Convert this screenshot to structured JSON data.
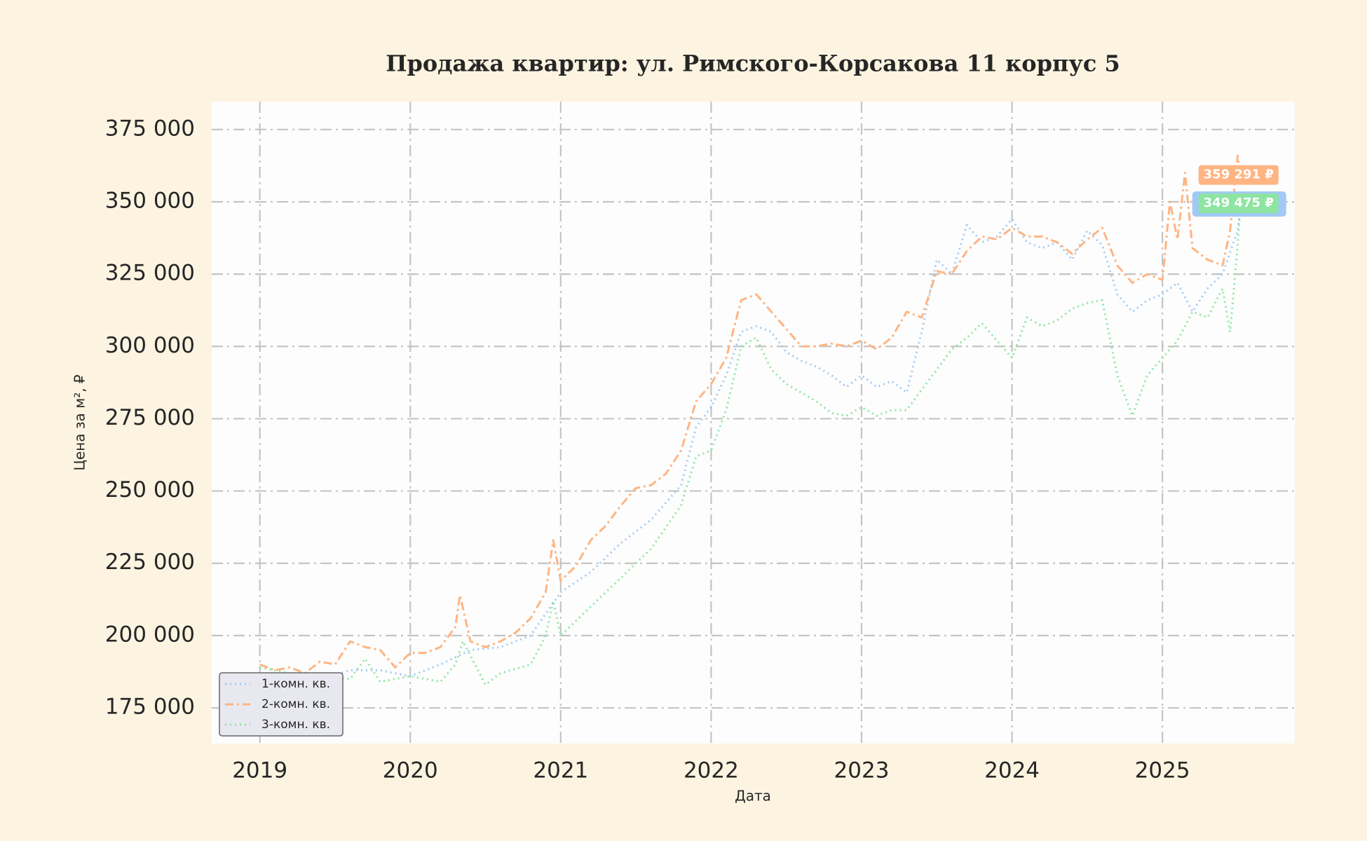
{
  "chart_data": {
    "type": "line",
    "title": "Продажа квартир: ул. Римского-Корсакова 11 корпус 5",
    "xlabel": "Дата",
    "ylabel": "Цена за м², ₽",
    "xlim": [
      2018.68,
      2025.88
    ],
    "xticks": [
      2019,
      2020,
      2021,
      2022,
      2023,
      2024,
      2025
    ],
    "ylim": [
      162650,
      384650
    ],
    "yticks": [
      {
        "value": 175000,
        "label": "175 000"
      },
      {
        "value": 200000,
        "label": "200 000"
      },
      {
        "value": 225000,
        "label": "225 000"
      },
      {
        "value": 250000,
        "label": "250 000"
      },
      {
        "value": 275000,
        "label": "275 000"
      },
      {
        "value": 300000,
        "label": "300 000"
      },
      {
        "value": 325000,
        "label": "325 000"
      },
      {
        "value": 350000,
        "label": "350 000"
      },
      {
        "value": 375000,
        "label": "375 000"
      }
    ],
    "grid": true,
    "legend": "lower left",
    "series": [
      {
        "name": "1-комн. кв.",
        "color": "#a1c9f4",
        "linestyle": "dotted",
        "x": [
          2019.0,
          2019.2,
          2019.4,
          2019.6,
          2019.8,
          2020.0,
          2020.2,
          2020.4,
          2020.6,
          2020.8,
          2021.0,
          2021.2,
          2021.4,
          2021.6,
          2021.8,
          2021.9,
          2022.0,
          2022.1,
          2022.2,
          2022.3,
          2022.4,
          2022.5,
          2022.6,
          2022.7,
          2022.8,
          2022.9,
          2023.0,
          2023.1,
          2023.2,
          2023.3,
          2023.4,
          2023.5,
          2023.6,
          2023.7,
          2023.8,
          2023.9,
          2024.0,
          2024.1,
          2024.2,
          2024.3,
          2024.4,
          2024.5,
          2024.6,
          2024.7,
          2024.8,
          2024.9,
          2025.0,
          2025.1,
          2025.2,
          2025.3,
          2025.4,
          2025.5,
          2025.52
        ],
        "values": [
          186000,
          187000,
          185000,
          188000,
          188000,
          186000,
          190000,
          195000,
          196000,
          200000,
          215000,
          222000,
          232000,
          240000,
          252000,
          272000,
          279000,
          290000,
          305000,
          307000,
          305000,
          298000,
          295000,
          293000,
          290000,
          286000,
          290000,
          286000,
          288000,
          284000,
          305000,
          330000,
          325000,
          342000,
          336000,
          338000,
          344000,
          336000,
          334000,
          336000,
          330000,
          340000,
          335000,
          318000,
          312000,
          316000,
          318000,
          322000,
          312000,
          320000,
          325000,
          340000,
          349000
        ]
      },
      {
        "name": "2-комн. кв.",
        "color": "#ffb482",
        "linestyle": "dashdot",
        "x": [
          2019.0,
          2019.1,
          2019.2,
          2019.3,
          2019.4,
          2019.5,
          2019.6,
          2019.7,
          2019.8,
          2019.9,
          2020.0,
          2020.1,
          2020.2,
          2020.3,
          2020.33,
          2020.4,
          2020.5,
          2020.6,
          2020.7,
          2020.8,
          2020.9,
          2020.95,
          2021.0,
          2021.1,
          2021.2,
          2021.3,
          2021.4,
          2021.5,
          2021.6,
          2021.7,
          2021.8,
          2021.9,
          2022.0,
          2022.1,
          2022.2,
          2022.3,
          2022.4,
          2022.5,
          2022.6,
          2022.7,
          2022.8,
          2022.9,
          2023.0,
          2023.1,
          2023.2,
          2023.3,
          2023.4,
          2023.5,
          2023.6,
          2023.7,
          2023.8,
          2023.9,
          2024.0,
          2024.1,
          2024.2,
          2024.3,
          2024.4,
          2024.5,
          2024.6,
          2024.7,
          2024.8,
          2024.9,
          2025.0,
          2025.05,
          2025.1,
          2025.15,
          2025.2,
          2025.3,
          2025.4,
          2025.45,
          2025.5,
          2025.52
        ],
        "values": [
          190000,
          188000,
          189000,
          187000,
          191000,
          190000,
          198000,
          196000,
          195000,
          189000,
          194000,
          194000,
          196000,
          203000,
          214000,
          198000,
          196000,
          198000,
          201000,
          206000,
          215000,
          233000,
          219000,
          224000,
          233000,
          238000,
          245000,
          251000,
          252000,
          256000,
          264000,
          281000,
          287000,
          296000,
          316000,
          318000,
          312000,
          306000,
          300000,
          300000,
          301000,
          300000,
          302000,
          299000,
          303000,
          312000,
          310000,
          326000,
          325000,
          333000,
          338000,
          337000,
          341000,
          338000,
          338000,
          336000,
          332000,
          337000,
          341000,
          328000,
          322000,
          325000,
          323000,
          350000,
          337000,
          360000,
          334000,
          330000,
          328000,
          340000,
          366000,
          359291
        ]
      },
      {
        "name": "3-комн. кв.",
        "color": "#8de5a1",
        "linestyle": "dotted",
        "x": [
          2019.0,
          2019.2,
          2019.4,
          2019.6,
          2019.7,
          2019.8,
          2020.0,
          2020.2,
          2020.3,
          2020.35,
          2020.5,
          2020.6,
          2020.8,
          2020.9,
          2020.95,
          2021.0,
          2021.2,
          2021.4,
          2021.6,
          2021.8,
          2021.9,
          2022.0,
          2022.1,
          2022.2,
          2022.3,
          2022.4,
          2022.5,
          2022.6,
          2022.7,
          2022.8,
          2022.9,
          2023.0,
          2023.1,
          2023.2,
          2023.3,
          2023.4,
          2023.5,
          2023.6,
          2023.7,
          2023.8,
          2023.9,
          2024.0,
          2024.1,
          2024.2,
          2024.3,
          2024.4,
          2024.5,
          2024.6,
          2024.7,
          2024.8,
          2024.9,
          2025.0,
          2025.1,
          2025.2,
          2025.3,
          2025.4,
          2025.45,
          2025.5,
          2025.52
        ],
        "values": [
          189000,
          187000,
          186000,
          185000,
          192000,
          184000,
          186000,
          184000,
          190000,
          198000,
          183000,
          187000,
          190000,
          200000,
          212000,
          200000,
          210000,
          220000,
          230000,
          245000,
          262000,
          264000,
          278000,
          300000,
          303000,
          292000,
          287000,
          284000,
          281000,
          277000,
          276000,
          279000,
          276000,
          278000,
          278000,
          285000,
          292000,
          299000,
          303000,
          308000,
          302000,
          296000,
          310000,
          307000,
          309000,
          313000,
          315000,
          316000,
          290000,
          276000,
          290000,
          296000,
          302000,
          312000,
          310000,
          320000,
          305000,
          335000,
          349475
        ]
      }
    ],
    "annotations": [
      {
        "series": 1,
        "value": 359291,
        "label": "359 291 ₽"
      },
      {
        "series": 2,
        "value": 349475,
        "label": "349 475 ₽"
      }
    ]
  }
}
